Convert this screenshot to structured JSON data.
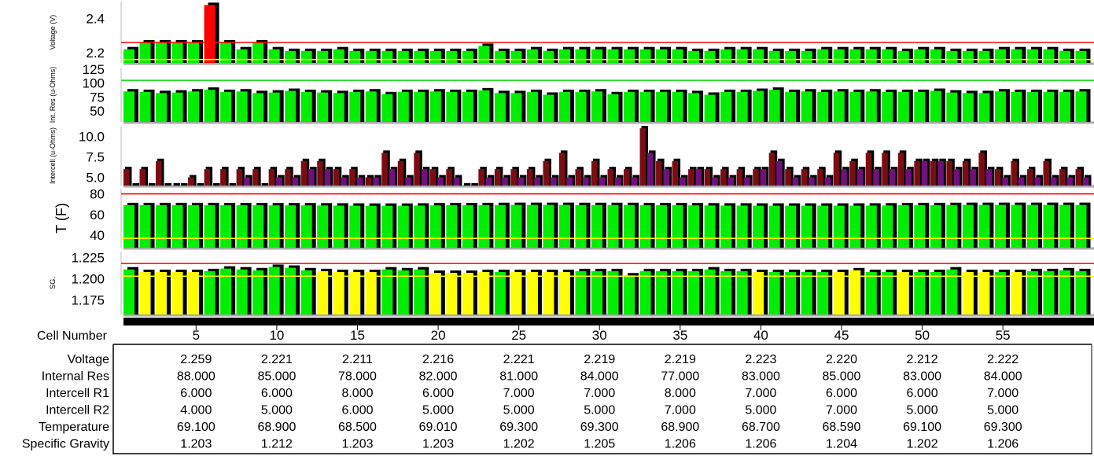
{
  "chart_data": [
    {
      "type": "bar",
      "ylabel": "Voltage (V)",
      "ylim": [
        2.14,
        2.5
      ],
      "yticks": [
        "2.2",
        "2.4"
      ],
      "threshold_lines": [
        {
          "value": 2.26,
          "color": "#ff0000"
        },
        {
          "value": 2.16,
          "color": "#ffff00"
        }
      ],
      "series": [
        {
          "values": [
            2.22,
            2.26,
            2.26,
            2.26,
            2.26,
            2.48,
            2.26,
            2.22,
            2.26,
            2.22,
            2.21,
            2.21,
            2.21,
            2.22,
            2.21,
            2.21,
            2.21,
            2.21,
            2.21,
            2.21,
            2.21,
            2.21,
            2.24,
            2.21,
            2.21,
            2.22,
            2.21,
            2.22,
            2.22,
            2.22,
            2.22,
            2.22,
            2.22,
            2.22,
            2.22,
            2.21,
            2.21,
            2.22,
            2.22,
            2.22,
            2.21,
            2.21,
            2.21,
            2.22,
            2.22,
            2.22,
            2.22,
            2.22,
            2.21,
            2.22,
            2.22,
            2.21,
            2.21,
            2.21,
            2.22,
            2.22,
            2.22,
            2.22,
            2.21,
            2.21
          ]
        }
      ]
    },
    {
      "type": "bar",
      "ylabel": "Int. Res (u-Ohms)",
      "ylim": [
        30,
        128
      ],
      "yticks": [
        "50",
        "75",
        "100",
        "125"
      ],
      "threshold_lines": [
        {
          "value": 105,
          "color": "#22dd22"
        }
      ],
      "series": [
        {
          "values": [
            85,
            84,
            82,
            83,
            85,
            88,
            84,
            85,
            82,
            83,
            86,
            84,
            83,
            82,
            84,
            85,
            80,
            84,
            84,
            85,
            84,
            84,
            87,
            82,
            82,
            84,
            79,
            84,
            84,
            85,
            80,
            84,
            84,
            84,
            84,
            82,
            79,
            84,
            84,
            86,
            88,
            84,
            85,
            84,
            85,
            84,
            85,
            84,
            84,
            84,
            86,
            83,
            82,
            82,
            85,
            84,
            84,
            84,
            84,
            85
          ]
        }
      ]
    },
    {
      "type": "bar",
      "ylabel": "Intercell (u-Ohms)",
      "ylim": [
        4,
        11.3
      ],
      "yticks": [
        "5.0",
        "7.5",
        "10.0"
      ],
      "series": [
        {
          "values": [
            6,
            6,
            7,
            4,
            5,
            6,
            6,
            6,
            6,
            6,
            6,
            7,
            7,
            6,
            6,
            5,
            8,
            7,
            8,
            6,
            6,
            4,
            6,
            6,
            6,
            6,
            7,
            8,
            6,
            7,
            6,
            6,
            11,
            7,
            7,
            6,
            6,
            6,
            6,
            6,
            8,
            6,
            6,
            6,
            8,
            7,
            8,
            8,
            8,
            7,
            7,
            7,
            7,
            8,
            6,
            7,
            6,
            7,
            6,
            6
          ]
        },
        {
          "values": [
            4,
            4,
            4,
            4,
            4,
            4,
            4,
            5,
            4,
            5,
            5,
            6,
            6,
            5,
            5,
            5,
            6,
            5,
            6,
            5,
            5,
            4,
            5,
            5,
            5,
            5,
            5,
            5,
            5,
            5,
            5,
            5,
            8,
            6,
            5,
            6,
            5,
            5,
            5,
            6,
            7,
            5,
            5,
            5,
            6,
            6,
            6,
            6,
            6,
            7,
            7,
            6,
            6,
            6,
            5,
            5,
            5,
            5,
            5,
            5
          ]
        }
      ]
    },
    {
      "type": "bar",
      "ylabel": "T (F)",
      "ylim": [
        28,
        85
      ],
      "yticks": [
        "40",
        "60",
        "80"
      ],
      "threshold_lines": [
        {
          "value": 80,
          "color": "#ff0000"
        },
        {
          "value": 37,
          "color": "#ffff00"
        }
      ],
      "series": [
        {
          "values": [
            69.1,
            69.1,
            69.1,
            69.1,
            69.1,
            69.1,
            69,
            69,
            69,
            68.9,
            68.9,
            68.9,
            68.8,
            68.7,
            68.6,
            68.5,
            68.5,
            68.5,
            68.7,
            68.9,
            69,
            69,
            69.1,
            69.2,
            69.3,
            69.3,
            69.3,
            69.3,
            69.2,
            69.2,
            69.2,
            69.2,
            69,
            69,
            69,
            68.9,
            68.8,
            68.7,
            68.7,
            68.6,
            68.6,
            68.6,
            68.6,
            68.6,
            68.6,
            68.6,
            68.7,
            68.8,
            69,
            69.1,
            69.1,
            69.2,
            69.3,
            69.3,
            69.3,
            69.3,
            69.3,
            69.3,
            69.3,
            69.3
          ]
        }
      ]
    },
    {
      "type": "bar",
      "ylabel": "SG.",
      "ylim": [
        1.158,
        1.232
      ],
      "yticks": [
        "1.175",
        "1.200",
        "1.225"
      ],
      "threshold_lines": [
        {
          "value": 1.218,
          "color": "#ff0000"
        },
        {
          "value": 1.203,
          "color": "#ffff00"
        }
      ],
      "series": [
        {
          "values": [
            1.211,
            1.208,
            1.208,
            1.208,
            1.208,
            1.209,
            1.212,
            1.211,
            1.21,
            1.214,
            1.213,
            1.21,
            1.209,
            1.208,
            1.208,
            1.208,
            1.211,
            1.21,
            1.211,
            1.207,
            1.207,
            1.207,
            1.208,
            1.208,
            1.208,
            1.208,
            1.208,
            1.208,
            1.209,
            1.209,
            1.209,
            1.204,
            1.209,
            1.209,
            1.209,
            1.209,
            1.211,
            1.209,
            1.209,
            1.208,
            1.208,
            1.208,
            1.208,
            1.208,
            1.208,
            1.21,
            1.208,
            1.208,
            1.208,
            1.208,
            1.208,
            1.211,
            1.208,
            1.208,
            1.208,
            1.208,
            1.209,
            1.209,
            1.21,
            1.209
          ],
          "colors": [
            "g",
            "y",
            "y",
            "y",
            "y",
            "g",
            "g",
            "g",
            "g",
            "g",
            "g",
            "g",
            "y",
            "y",
            "y",
            "y",
            "g",
            "g",
            "g",
            "y",
            "y",
            "y",
            "y",
            "g",
            "y",
            "y",
            "y",
            "y",
            "g",
            "g",
            "g",
            "g",
            "g",
            "g",
            "g",
            "g",
            "g",
            "g",
            "g",
            "y",
            "g",
            "g",
            "g",
            "g",
            "y",
            "y",
            "g",
            "g",
            "y",
            "g",
            "g",
            "g",
            "y",
            "y",
            "g",
            "y",
            "g",
            "g",
            "g",
            "g"
          ]
        }
      ]
    }
  ],
  "colors": {
    "green": "#00ee00",
    "yellow": "#ffff00",
    "red": "#ff0000",
    "maroon": "#7a0d14",
    "purple": "#6e117a",
    "shadow": "#000000"
  },
  "highlight_cell_index": 5,
  "cell_axis": {
    "label": "Cell Number",
    "ticks": [
      "5",
      "10",
      "15",
      "20",
      "25",
      "30",
      "35",
      "40",
      "45",
      "50",
      "55"
    ]
  },
  "table": {
    "rows": [
      {
        "label": "Voltage",
        "values": [
          "2.259",
          "2.221",
          "2.211",
          "2.216",
          "2.221",
          "2.219",
          "2.219",
          "2.223",
          "2.220",
          "2.212",
          "2.222"
        ]
      },
      {
        "label": "Internal Res",
        "values": [
          "88.000",
          "85.000",
          "78.000",
          "82.000",
          "81.000",
          "84.000",
          "77.000",
          "83.000",
          "85.000",
          "83.000",
          "84.000"
        ]
      },
      {
        "label": "Intercell R1",
        "values": [
          "6.000",
          "6.000",
          "8.000",
          "6.000",
          "7.000",
          "7.000",
          "8.000",
          "7.000",
          "6.000",
          "6.000",
          "7.000"
        ]
      },
      {
        "label": "Intercell R2",
        "values": [
          "4.000",
          "5.000",
          "6.000",
          "5.000",
          "5.000",
          "5.000",
          "7.000",
          "5.000",
          "7.000",
          "5.000",
          "5.000"
        ]
      },
      {
        "label": "Temperature",
        "values": [
          "69.100",
          "68.900",
          "68.500",
          "69.010",
          "69.300",
          "69.300",
          "68.900",
          "68.700",
          "68.590",
          "69.100",
          "69.300"
        ]
      },
      {
        "label": "Specific Gravity",
        "values": [
          "1.203",
          "1.212",
          "1.203",
          "1.203",
          "1.202",
          "1.205",
          "1.206",
          "1.206",
          "1.204",
          "1.202",
          "1.206"
        ]
      }
    ]
  }
}
